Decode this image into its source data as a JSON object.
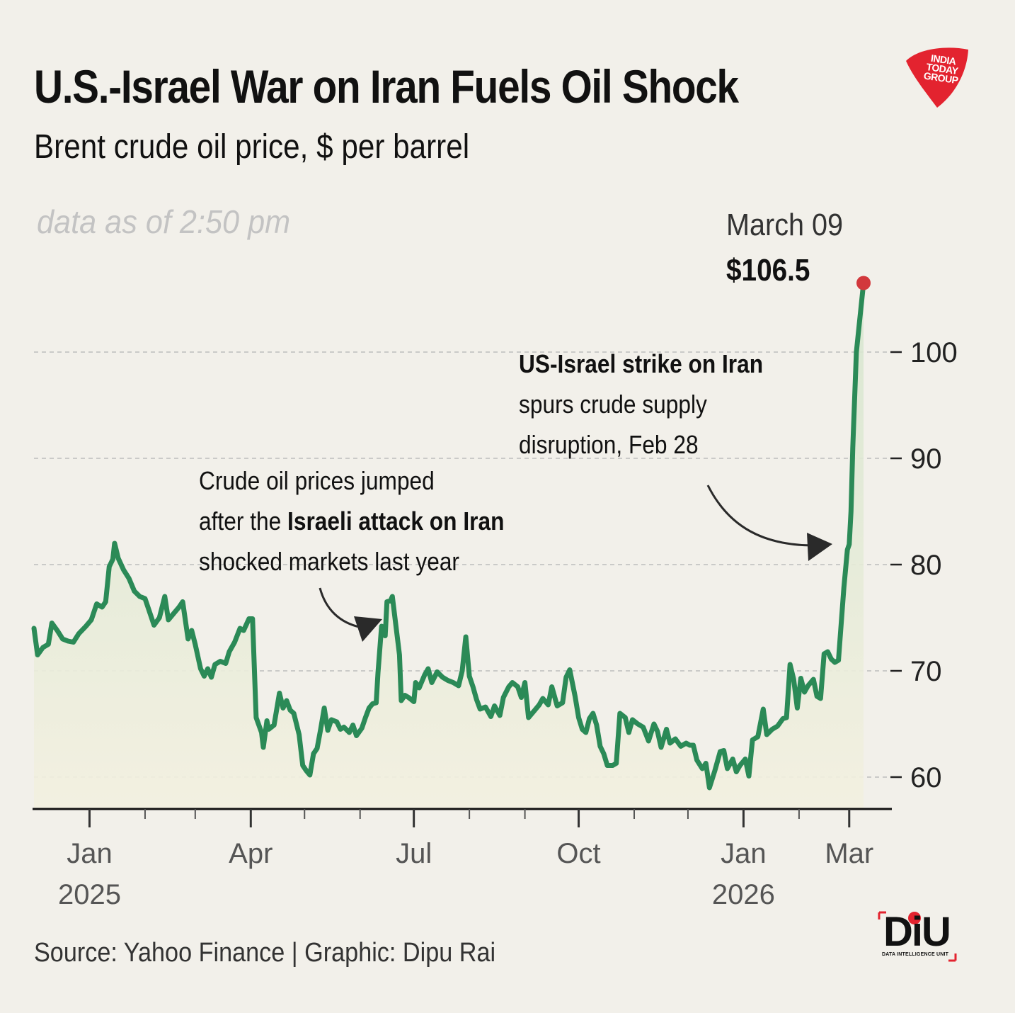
{
  "header": {
    "title": "U.S.-Israel War on Iran Fuels Oil Shock",
    "subtitle": "Brent crude oil price, $ per barrel",
    "data_note": "data as of 2:50 pm"
  },
  "peak": {
    "date": "March 09",
    "value_label": "$106.5"
  },
  "annotations": {
    "strike": {
      "bold": "US-Israel strike on Iran",
      "line2": "spurs crude supply",
      "line3": "disruption, Feb 28"
    },
    "israeli": {
      "line1": "Crude oil prices jumped",
      "line2_prefix": "after the ",
      "line2_bold": "Israeli attack on Iran",
      "line3": "shocked markets last year"
    }
  },
  "footer": {
    "source": "Source: Yahoo Finance | Graphic: Dipu Rai"
  },
  "logos": {
    "top_right": {
      "text": "INDIA TODAY GROUP",
      "color": "#e3232f"
    },
    "bottom_right": {
      "word": "DiU",
      "sub": "DATA INTELLIGENCE UNIT",
      "accent": "#e3232f"
    }
  },
  "colors": {
    "line": "#2b8a57",
    "area_top": "#d6e6cf",
    "area_bottom": "#f3f0e0",
    "peak_dot": "#d2383c",
    "grid": "#bdbdbd",
    "background": "#f2f0ea"
  },
  "chart_data": {
    "type": "area",
    "title": "U.S.-Israel War on Iran Fuels Oil Shock",
    "subtitle": "Brent crude oil price, $ per barrel",
    "xlabel": "",
    "ylabel": "",
    "y_axis_position": "right",
    "ylim": [
      57,
      107
    ],
    "yticks": [
      60,
      70,
      80,
      90,
      100
    ],
    "grid": "horizontal dashed",
    "xlim": [
      "2024-12-01",
      "2026-03-24"
    ],
    "x_ticks_major": [
      {
        "date": "2025-01-01",
        "label": "Jan",
        "year": "2025"
      },
      {
        "date": "2025-04-01",
        "label": "Apr"
      },
      {
        "date": "2025-07-01",
        "label": "Jul"
      },
      {
        "date": "2025-10-01",
        "label": "Oct"
      },
      {
        "date": "2026-01-01",
        "label": "Jan",
        "year": "2026"
      },
      {
        "date": "2026-03-01",
        "label": "Mar"
      }
    ],
    "x_ticks_minor": [
      "2025-02-01",
      "2025-03-01",
      "2025-05-01",
      "2025-06-01",
      "2025-08-01",
      "2025-09-01",
      "2025-11-01",
      "2025-12-01",
      "2026-02-01"
    ],
    "series": [
      {
        "name": "",
        "points": [
          [
            "2024-12-01",
            74.0
          ],
          [
            "2024-12-03",
            71.5
          ],
          [
            "2024-12-06",
            72.2
          ],
          [
            "2024-12-09",
            72.5
          ],
          [
            "2024-12-11",
            74.5
          ],
          [
            "2024-12-14",
            73.8
          ],
          [
            "2024-12-17",
            73.0
          ],
          [
            "2024-12-20",
            72.8
          ],
          [
            "2024-12-23",
            72.7
          ],
          [
            "2024-12-26",
            73.5
          ],
          [
            "2024-12-30",
            74.2
          ],
          [
            "2025-01-02",
            74.8
          ],
          [
            "2025-01-05",
            76.3
          ],
          [
            "2025-01-08",
            76.0
          ],
          [
            "2025-01-10",
            76.5
          ],
          [
            "2025-01-12",
            79.8
          ],
          [
            "2025-01-14",
            80.5
          ],
          [
            "2025-01-15",
            82.0
          ],
          [
            "2025-01-17",
            80.6
          ],
          [
            "2025-01-20",
            79.5
          ],
          [
            "2025-01-23",
            78.7
          ],
          [
            "2025-01-26",
            77.5
          ],
          [
            "2025-01-29",
            77.0
          ],
          [
            "2025-02-01",
            76.8
          ],
          [
            "2025-02-03",
            75.8
          ],
          [
            "2025-02-06",
            74.3
          ],
          [
            "2025-02-09",
            75.0
          ],
          [
            "2025-02-12",
            77.0
          ],
          [
            "2025-02-14",
            74.8
          ],
          [
            "2025-02-17",
            75.4
          ],
          [
            "2025-02-20",
            76.0
          ],
          [
            "2025-02-22",
            76.5
          ],
          [
            "2025-02-25",
            73.0
          ],
          [
            "2025-02-27",
            73.8
          ],
          [
            "2025-03-01",
            72.5
          ],
          [
            "2025-03-04",
            70.2
          ],
          [
            "2025-03-06",
            69.5
          ],
          [
            "2025-03-08",
            70.2
          ],
          [
            "2025-03-10",
            69.4
          ],
          [
            "2025-03-12",
            70.6
          ],
          [
            "2025-03-15",
            70.9
          ],
          [
            "2025-03-18",
            70.7
          ],
          [
            "2025-03-20",
            71.8
          ],
          [
            "2025-03-23",
            72.7
          ],
          [
            "2025-03-26",
            74.0
          ],
          [
            "2025-03-28",
            73.8
          ],
          [
            "2025-03-31",
            74.9
          ],
          [
            "2025-04-02",
            74.9
          ],
          [
            "2025-04-04",
            65.6
          ],
          [
            "2025-04-07",
            64.2
          ],
          [
            "2025-04-08",
            62.8
          ],
          [
            "2025-04-10",
            65.3
          ],
          [
            "2025-04-11",
            64.5
          ],
          [
            "2025-04-14",
            64.9
          ],
          [
            "2025-04-17",
            67.9
          ],
          [
            "2025-04-19",
            66.5
          ],
          [
            "2025-04-21",
            67.2
          ],
          [
            "2025-04-23",
            66.3
          ],
          [
            "2025-04-25",
            66.0
          ],
          [
            "2025-04-28",
            64.0
          ],
          [
            "2025-04-30",
            61.1
          ],
          [
            "2025-05-02",
            60.6
          ],
          [
            "2025-05-04",
            60.2
          ],
          [
            "2025-05-06",
            62.2
          ],
          [
            "2025-05-08",
            62.7
          ],
          [
            "2025-05-10",
            64.5
          ],
          [
            "2025-05-12",
            66.5
          ],
          [
            "2025-05-14",
            64.4
          ],
          [
            "2025-05-16",
            65.4
          ],
          [
            "2025-05-19",
            65.2
          ],
          [
            "2025-05-21",
            64.5
          ],
          [
            "2025-05-23",
            64.7
          ],
          [
            "2025-05-26",
            64.2
          ],
          [
            "2025-05-28",
            64.9
          ],
          [
            "2025-05-30",
            63.9
          ],
          [
            "2025-06-02",
            64.6
          ],
          [
            "2025-06-04",
            65.6
          ],
          [
            "2025-06-06",
            66.5
          ],
          [
            "2025-06-08",
            66.9
          ],
          [
            "2025-06-10",
            67.0
          ],
          [
            "2025-06-11",
            69.8
          ],
          [
            "2025-06-13",
            74.2
          ],
          [
            "2025-06-15",
            73.3
          ],
          [
            "2025-06-16",
            76.5
          ],
          [
            "2025-06-18",
            76.6
          ],
          [
            "2025-06-19",
            77.0
          ],
          [
            "2025-06-23",
            71.5
          ],
          [
            "2025-06-24",
            67.2
          ],
          [
            "2025-06-26",
            67.7
          ],
          [
            "2025-06-28",
            67.5
          ],
          [
            "2025-07-01",
            67.1
          ],
          [
            "2025-07-02",
            68.9
          ],
          [
            "2025-07-04",
            68.4
          ],
          [
            "2025-07-07",
            69.6
          ],
          [
            "2025-07-09",
            70.2
          ],
          [
            "2025-07-11",
            68.9
          ],
          [
            "2025-07-14",
            69.9
          ],
          [
            "2025-07-17",
            69.4
          ],
          [
            "2025-07-20",
            69.1
          ],
          [
            "2025-07-23",
            68.9
          ],
          [
            "2025-07-26",
            68.6
          ],
          [
            "2025-07-28",
            70.0
          ],
          [
            "2025-07-30",
            73.2
          ],
          [
            "2025-08-01",
            69.5
          ],
          [
            "2025-08-03",
            68.5
          ],
          [
            "2025-08-05",
            67.3
          ],
          [
            "2025-08-07",
            66.4
          ],
          [
            "2025-08-10",
            66.6
          ],
          [
            "2025-08-13",
            65.7
          ],
          [
            "2025-08-15",
            66.7
          ],
          [
            "2025-08-18",
            65.8
          ],
          [
            "2025-08-20",
            67.5
          ],
          [
            "2025-08-23",
            68.5
          ],
          [
            "2025-08-25",
            68.9
          ],
          [
            "2025-08-28",
            68.5
          ],
          [
            "2025-08-30",
            67.5
          ],
          [
            "2025-09-01",
            68.9
          ],
          [
            "2025-09-03",
            65.6
          ],
          [
            "2025-09-06",
            66.2
          ],
          [
            "2025-09-09",
            66.8
          ],
          [
            "2025-09-11",
            67.4
          ],
          [
            "2025-09-14",
            66.8
          ],
          [
            "2025-09-16",
            68.5
          ],
          [
            "2025-09-19",
            66.7
          ],
          [
            "2025-09-22",
            67.0
          ],
          [
            "2025-09-24",
            69.4
          ],
          [
            "2025-09-26",
            70.1
          ],
          [
            "2025-09-29",
            67.6
          ],
          [
            "2025-10-01",
            65.6
          ],
          [
            "2025-10-03",
            64.5
          ],
          [
            "2025-10-05",
            64.2
          ],
          [
            "2025-10-07",
            65.5
          ],
          [
            "2025-10-09",
            66.0
          ],
          [
            "2025-10-11",
            64.9
          ],
          [
            "2025-10-13",
            62.9
          ],
          [
            "2025-10-15",
            62.2
          ],
          [
            "2025-10-17",
            61.1
          ],
          [
            "2025-10-20",
            61.1
          ],
          [
            "2025-10-22",
            61.3
          ],
          [
            "2025-10-24",
            66.0
          ],
          [
            "2025-10-27",
            65.6
          ],
          [
            "2025-10-29",
            64.2
          ],
          [
            "2025-10-31",
            65.4
          ],
          [
            "2025-11-03",
            65.0
          ],
          [
            "2025-11-06",
            64.7
          ],
          [
            "2025-11-09",
            63.4
          ],
          [
            "2025-11-12",
            65.0
          ],
          [
            "2025-11-14",
            64.3
          ],
          [
            "2025-11-16",
            62.8
          ],
          [
            "2025-11-19",
            64.5
          ],
          [
            "2025-11-21",
            63.2
          ],
          [
            "2025-11-24",
            63.6
          ],
          [
            "2025-11-27",
            62.9
          ],
          [
            "2025-11-30",
            63.2
          ],
          [
            "2025-12-02",
            63.0
          ],
          [
            "2025-12-04",
            63.0
          ],
          [
            "2025-12-06",
            61.6
          ],
          [
            "2025-12-09",
            60.8
          ],
          [
            "2025-12-11",
            61.3
          ],
          [
            "2025-12-13",
            59.0
          ],
          [
            "2025-12-16",
            60.6
          ],
          [
            "2025-12-19",
            62.4
          ],
          [
            "2025-12-21",
            62.5
          ],
          [
            "2025-12-23",
            60.8
          ],
          [
            "2025-12-26",
            61.7
          ],
          [
            "2025-12-28",
            60.5
          ],
          [
            "2025-12-30",
            61.1
          ],
          [
            "2026-01-02",
            61.7
          ],
          [
            "2026-01-04",
            60.1
          ],
          [
            "2026-01-06",
            63.5
          ],
          [
            "2026-01-09",
            63.8
          ],
          [
            "2026-01-12",
            66.4
          ],
          [
            "2026-01-14",
            64.0
          ],
          [
            "2026-01-17",
            64.5
          ],
          [
            "2026-01-20",
            64.8
          ],
          [
            "2026-01-23",
            65.5
          ],
          [
            "2026-01-25",
            65.6
          ],
          [
            "2026-01-27",
            70.6
          ],
          [
            "2026-01-29",
            69.2
          ],
          [
            "2026-01-31",
            66.5
          ],
          [
            "2026-02-02",
            69.3
          ],
          [
            "2026-02-04",
            68.0
          ],
          [
            "2026-02-06",
            68.6
          ],
          [
            "2026-02-09",
            69.2
          ],
          [
            "2026-02-11",
            67.6
          ],
          [
            "2026-02-13",
            67.4
          ],
          [
            "2026-02-15",
            71.6
          ],
          [
            "2026-02-17",
            71.8
          ],
          [
            "2026-02-19",
            71.1
          ],
          [
            "2026-02-21",
            70.8
          ],
          [
            "2026-02-23",
            71.0
          ],
          [
            "2026-02-26",
            77.8
          ],
          [
            "2026-02-28",
            81.4
          ],
          [
            "2026-03-01",
            81.9
          ],
          [
            "2026-03-02",
            85.0
          ],
          [
            "2026-03-03",
            91.0
          ],
          [
            "2026-03-05",
            100.0
          ],
          [
            "2026-03-09",
            106.5
          ]
        ]
      }
    ],
    "peak": {
      "date": "2026-03-09",
      "value": 106.5
    }
  }
}
